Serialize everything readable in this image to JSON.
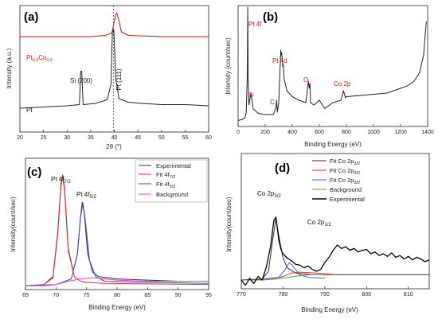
{
  "chart_data": [
    {
      "panel": "(a)",
      "type": "line",
      "xlabel": "2θ (°)",
      "ylabel": "Intensity (a.u.)",
      "xlim": [
        20,
        60
      ],
      "xticks": [
        20,
        25,
        30,
        35,
        40,
        45,
        50,
        55,
        60
      ],
      "reference_line_x": 39.8,
      "series": [
        {
          "name": "Pt0.4Co0.6",
          "name_main": "Pt",
          "name_sub1": "0.4",
          "name_mid": "Co",
          "name_sub2": "0.6",
          "color": "#e01010",
          "x": [
            20,
            25,
            30,
            35,
            38,
            39.5,
            40.2,
            40.5,
            40.9,
            41.5,
            43,
            50,
            60
          ],
          "y": [
            0.8,
            0.8,
            0.8,
            0.8,
            0.81,
            0.83,
            0.97,
            1.0,
            0.95,
            0.84,
            0.81,
            0.8,
            0.8
          ]
        },
        {
          "name": "Pt",
          "color": "#222222",
          "x": [
            20,
            25,
            30,
            32.6,
            32.9,
            33.1,
            33.4,
            36,
            38.5,
            39.3,
            39.6,
            39.9,
            40.3,
            41,
            43,
            46,
            50,
            55,
            60
          ],
          "y": [
            0.2,
            0.21,
            0.22,
            0.23,
            0.51,
            0.51,
            0.23,
            0.24,
            0.27,
            0.4,
            0.84,
            0.86,
            0.45,
            0.28,
            0.25,
            0.24,
            0.23,
            0.23,
            0.22
          ]
        }
      ],
      "annotations": [
        {
          "text": "Si (200)",
          "x": 33.0
        },
        {
          "text": "Pt (111)",
          "x": 39.8
        }
      ]
    },
    {
      "panel": "(b)",
      "type": "line",
      "xlabel": "Binding Energy (eV)",
      "ylabel": "Intensity (count/sec)",
      "xlim": [
        0,
        1400
      ],
      "xticks": [
        0,
        200,
        400,
        600,
        800,
        1000,
        1200,
        1400
      ],
      "series": [
        {
          "name": "",
          "color": "#222222",
          "x": [
            0,
            30,
            50,
            60,
            68,
            71,
            74,
            80,
            95,
            100,
            110,
            150,
            200,
            260,
            280,
            285,
            290,
            300,
            315,
            318,
            322,
            330,
            333,
            340,
            360,
            400,
            450,
            500,
            520,
            525,
            531,
            535,
            560,
            600,
            640,
            700,
            760,
            778,
            793,
            800,
            900,
            1000,
            1100,
            1200,
            1250,
            1300,
            1340,
            1370,
            1390
          ],
          "y": [
            0.05,
            0.06,
            0.07,
            0.12,
            0.45,
            1.0,
            0.4,
            0.18,
            0.28,
            0.24,
            0.15,
            0.11,
            0.1,
            0.1,
            0.16,
            0.22,
            0.12,
            0.2,
            0.64,
            0.6,
            0.62,
            0.5,
            0.52,
            0.4,
            0.3,
            0.25,
            0.22,
            0.2,
            0.38,
            0.32,
            0.36,
            0.2,
            0.18,
            0.22,
            0.15,
            0.2,
            0.22,
            0.3,
            0.24,
            0.25,
            0.26,
            0.27,
            0.28,
            0.32,
            0.34,
            0.38,
            0.45,
            0.6,
            0.88
          ]
        }
      ],
      "annotations": [
        {
          "text": "Pt 4f",
          "x": 71
        },
        {
          "text": "Si",
          "x": 100
        },
        {
          "text": "C",
          "x": 285
        },
        {
          "text": "Pt 4d",
          "x": 318
        },
        {
          "text": "O",
          "x": 531
        },
        {
          "text": "Co 2p",
          "x": 780
        }
      ]
    },
    {
      "panel": "(c)",
      "type": "line",
      "xlabel": "Binding Energy (eV)",
      "ylabel": "Intensity(count/sec)",
      "xlim": [
        65,
        95
      ],
      "xticks": [
        65,
        70,
        75,
        80,
        85,
        90,
        95
      ],
      "legend_position": "top-right",
      "series": [
        {
          "name": "Experimental",
          "color": "#333333",
          "x": [
            65,
            68,
            69.5,
            70.3,
            70.8,
            71.1,
            71.4,
            72,
            72.8,
            73.5,
            74.0,
            74.3,
            74.6,
            75.2,
            76,
            77,
            80,
            85,
            90,
            95
          ],
          "y": [
            0.02,
            0.03,
            0.1,
            0.5,
            0.92,
            1.0,
            0.88,
            0.35,
            0.15,
            0.3,
            0.62,
            0.76,
            0.68,
            0.3,
            0.14,
            0.1,
            0.08,
            0.07,
            0.06,
            0.06
          ]
        },
        {
          "name": "Fit 4f7/2",
          "name_main": "Fit 4f",
          "name_sub": "7/2",
          "color": "#e03030",
          "x": [
            65,
            68,
            69.5,
            70.3,
            70.8,
            71.1,
            71.4,
            72,
            73,
            74,
            75,
            78,
            95
          ],
          "y": [
            0.02,
            0.03,
            0.09,
            0.48,
            0.9,
            0.98,
            0.86,
            0.33,
            0.1,
            0.06,
            0.05,
            0.04,
            0.03
          ]
        },
        {
          "name": "Fit 4f5/2",
          "name_main": "Fit 4f",
          "name_sub": "5/2",
          "color": "#4040c0",
          "x": [
            65,
            70,
            72.5,
            73.5,
            74.0,
            74.4,
            74.8,
            75.5,
            76.5,
            78,
            85,
            95
          ],
          "y": [
            0.02,
            0.03,
            0.08,
            0.3,
            0.62,
            0.75,
            0.6,
            0.24,
            0.1,
            0.06,
            0.05,
            0.04
          ]
        },
        {
          "name": "Background",
          "color": "#e040e0",
          "x": [
            65,
            68,
            70,
            72,
            74,
            76,
            78,
            80,
            85,
            90,
            95
          ],
          "y": [
            0.02,
            0.02,
            0.03,
            0.06,
            0.08,
            0.09,
            0.08,
            0.07,
            0.06,
            0.06,
            0.06
          ]
        }
      ],
      "annotations": [
        {
          "text": "Pt 4f7/2",
          "main": "Pt 4f",
          "sub": "7/2"
        },
        {
          "text": "Pt 4f5/2",
          "main": "Pt 4f",
          "sub": "5/2"
        }
      ]
    },
    {
      "panel": "(d)",
      "type": "line",
      "xlabel": "Binding Energy (eV)",
      "ylabel": "Intensity(count/sec)",
      "xlim": [
        770,
        815
      ],
      "xticks": [
        770,
        780,
        790,
        800,
        810
      ],
      "legend_position": "top-left",
      "series": [
        {
          "name": "Fit Co 2p3/2",
          "name_main": "Fit Co 2p",
          "name_sub": "3/2",
          "color": "#333333",
          "x": [
            770,
            775,
            776.5,
            777.5,
            778.3,
            779.0,
            780,
            781,
            783,
            787,
            793,
            815
          ],
          "y": [
            0.1,
            0.11,
            0.2,
            0.55,
            0.8,
            0.6,
            0.35,
            0.24,
            0.18,
            0.16,
            0.16,
            0.16
          ]
        },
        {
          "name": "Fit Co 2p3/2",
          "name_main": "Fit Co 2p",
          "name_sub": "3/2",
          "color": "#e03030",
          "x": [
            775,
            778,
            780,
            782,
            784,
            788,
            793
          ],
          "y": [
            0.11,
            0.12,
            0.14,
            0.18,
            0.19,
            0.18,
            0.16
          ]
        },
        {
          "name": "Fit Co 2p3/2",
          "name_main": "Fit Co 2p",
          "name_sub": "3/2",
          "color": "#5050d0",
          "x": [
            775,
            779,
            780.5,
            781.5,
            782.5,
            784,
            786,
            790
          ],
          "y": [
            0.11,
            0.13,
            0.22,
            0.3,
            0.25,
            0.16,
            0.13,
            0.12
          ]
        },
        {
          "name": "Background",
          "color": "#40b040",
          "x": [
            772,
            775,
            778,
            781,
            784,
            787,
            790,
            793
          ],
          "y": [
            0.1,
            0.1,
            0.11,
            0.13,
            0.15,
            0.16,
            0.16,
            0.16
          ]
        },
        {
          "name": "Experimental",
          "color": "#000000",
          "x": [
            770,
            771,
            772,
            773,
            774,
            775,
            776,
            777,
            777.8,
            778.3,
            779,
            779.5,
            780,
            781,
            782,
            783,
            784,
            785,
            786,
            787,
            788,
            789,
            790,
            791,
            792,
            793,
            794,
            795,
            796,
            797,
            798,
            799,
            800,
            801,
            802,
            803,
            804,
            805,
            806,
            807,
            808,
            809,
            810,
            811,
            812,
            813,
            814,
            815
          ],
          "y": [
            0.1,
            0.04,
            0.12,
            0.06,
            0.14,
            0.1,
            0.25,
            0.48,
            0.78,
            0.82,
            0.55,
            0.45,
            0.4,
            0.35,
            0.32,
            0.28,
            0.27,
            0.24,
            0.26,
            0.22,
            0.2,
            0.22,
            0.3,
            0.36,
            0.44,
            0.5,
            0.46,
            0.48,
            0.44,
            0.46,
            0.42,
            0.44,
            0.45,
            0.4,
            0.42,
            0.38,
            0.4,
            0.37,
            0.41,
            0.36,
            0.38,
            0.34,
            0.37,
            0.33,
            0.36,
            0.34,
            0.31,
            0.33
          ]
        }
      ],
      "annotations": [
        {
          "text": "Co 2p3/2",
          "main": "Co 2p",
          "sub": "3/2"
        },
        {
          "text": "Co 2p1/2",
          "main": "Co 2p",
          "sub": "1/2"
        }
      ]
    }
  ]
}
